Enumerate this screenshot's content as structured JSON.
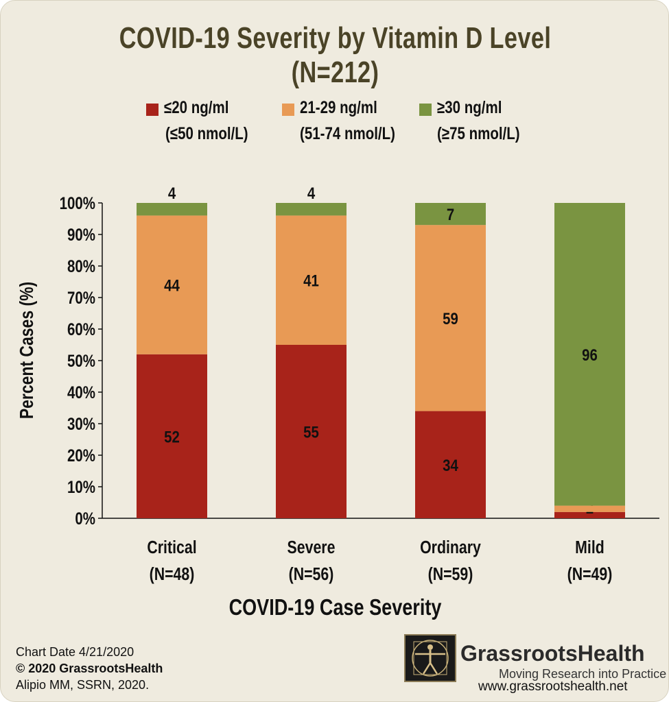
{
  "chart_data": {
    "type": "bar",
    "stacked": true,
    "title": "COVID-19 Severity by Vitamin D Level (N=212)",
    "xlabel": "COVID-19 Case Severity",
    "ylabel": "Percent Cases (%)",
    "ylim": [
      0,
      100
    ],
    "yticks": [
      "0%",
      "10%",
      "20%",
      "30%",
      "40%",
      "50%",
      "60%",
      "70%",
      "80%",
      "90%",
      "100%"
    ],
    "categories": [
      "Critical",
      "Severe",
      "Ordinary",
      "Mild"
    ],
    "category_n": [
      "(N=48)",
      "(N=56)",
      "(N=59)",
      "(N=49)"
    ],
    "series": [
      {
        "name": "≤20 ng/ml",
        "subname": "(≤50 nmol/L)",
        "color": "#a8231a",
        "values": [
          52,
          55,
          34,
          2
        ],
        "labels": [
          "52",
          "55",
          "34",
          "2"
        ]
      },
      {
        "name": "21-29 ng/ml",
        "subname": "(51-74 nmol/L)",
        "color": "#e89a55",
        "values": [
          44,
          41,
          59,
          2
        ],
        "labels": [
          "44",
          "41",
          "59",
          ""
        ]
      },
      {
        "name": "≥30 ng/ml",
        "subname": "(≥75 nmol/L)",
        "color": "#7a9441",
        "values": [
          4,
          4,
          7,
          96
        ],
        "labels": [
          "4",
          "4",
          "7",
          "96"
        ]
      }
    ],
    "legend_position": "top",
    "grid": false
  },
  "footer": {
    "date": "Chart Date 4/21/2020",
    "copyright": "© 2020 GrassrootsHealth",
    "citation": "Alipio MM, SSRN, 2020."
  },
  "brand": {
    "name": "GrassrootsHealth",
    "tagline": "Moving Research into Practice",
    "url": "www.grassrootshealth.net"
  }
}
